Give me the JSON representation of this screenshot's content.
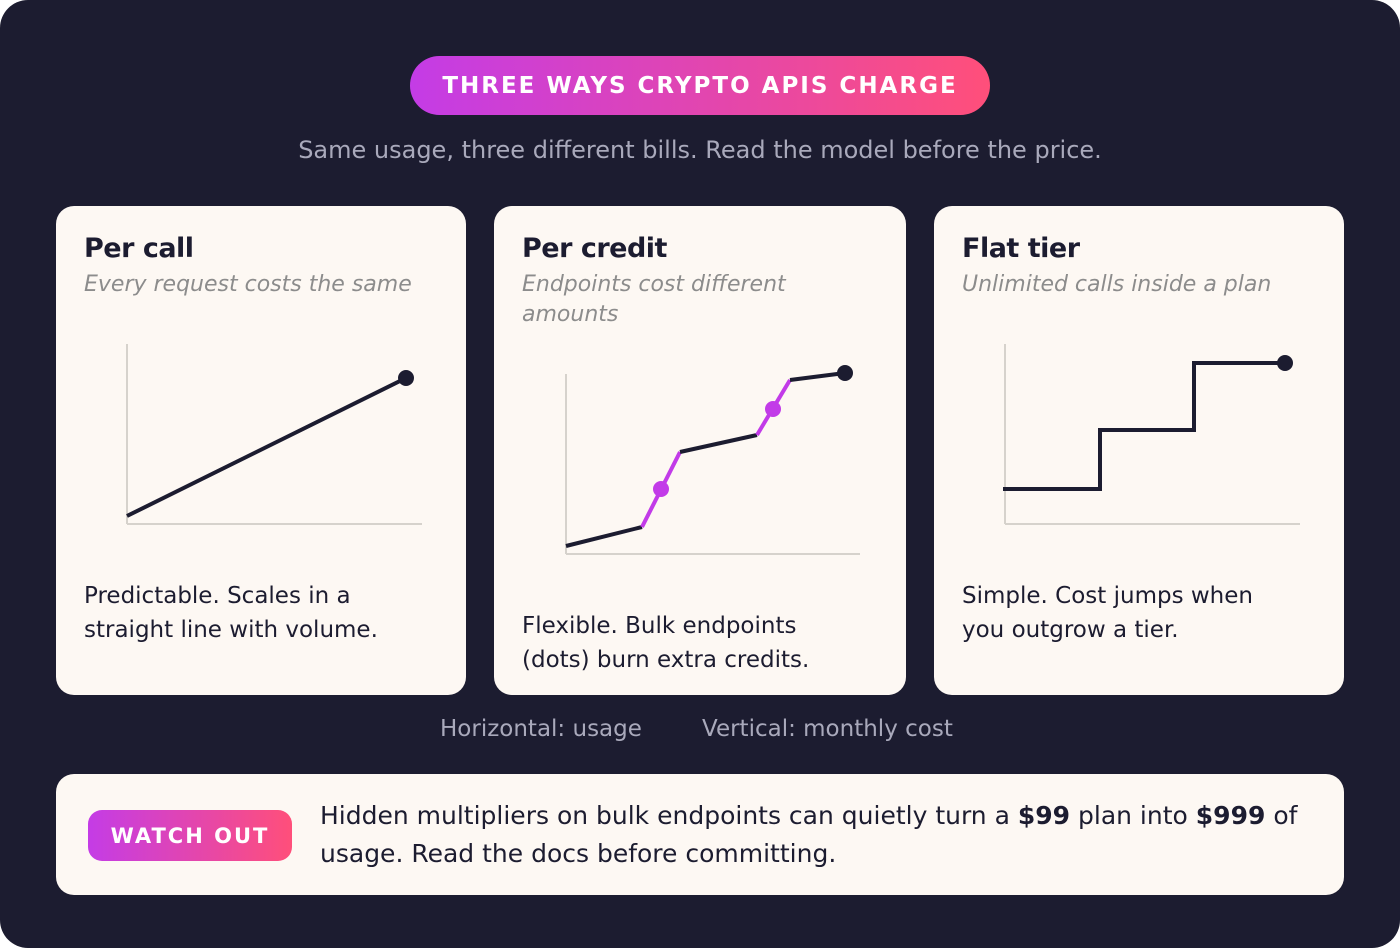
{
  "header": {
    "badge": "THREE WAYS CRYPTO APIS CHARGE",
    "subtitle": "Same usage, three different bills. Read the model before the price."
  },
  "cards": [
    {
      "title": "Per call",
      "subtitle": "Every request costs the same",
      "description": "Predictable. Scales in a straight line with volume."
    },
    {
      "title": "Per credit",
      "subtitle": "Endpoints cost different amounts",
      "description": "Flexible. Bulk endpoints (dots) burn extra credits."
    },
    {
      "title": "Flat tier",
      "subtitle": "Unlimited calls inside a plan",
      "description": "Simple. Cost jumps when you outgrow a tier."
    }
  ],
  "axis_legend": {
    "horizontal": "Horizontal: usage",
    "vertical": "Vertical: monthly cost"
  },
  "callout": {
    "badge": "WATCH OUT",
    "text": [
      "Hidden multipliers on bulk endpoints can quietly turn a ",
      "$99",
      " plan into ",
      "$999",
      " of usage. Read the docs before committing."
    ]
  }
}
